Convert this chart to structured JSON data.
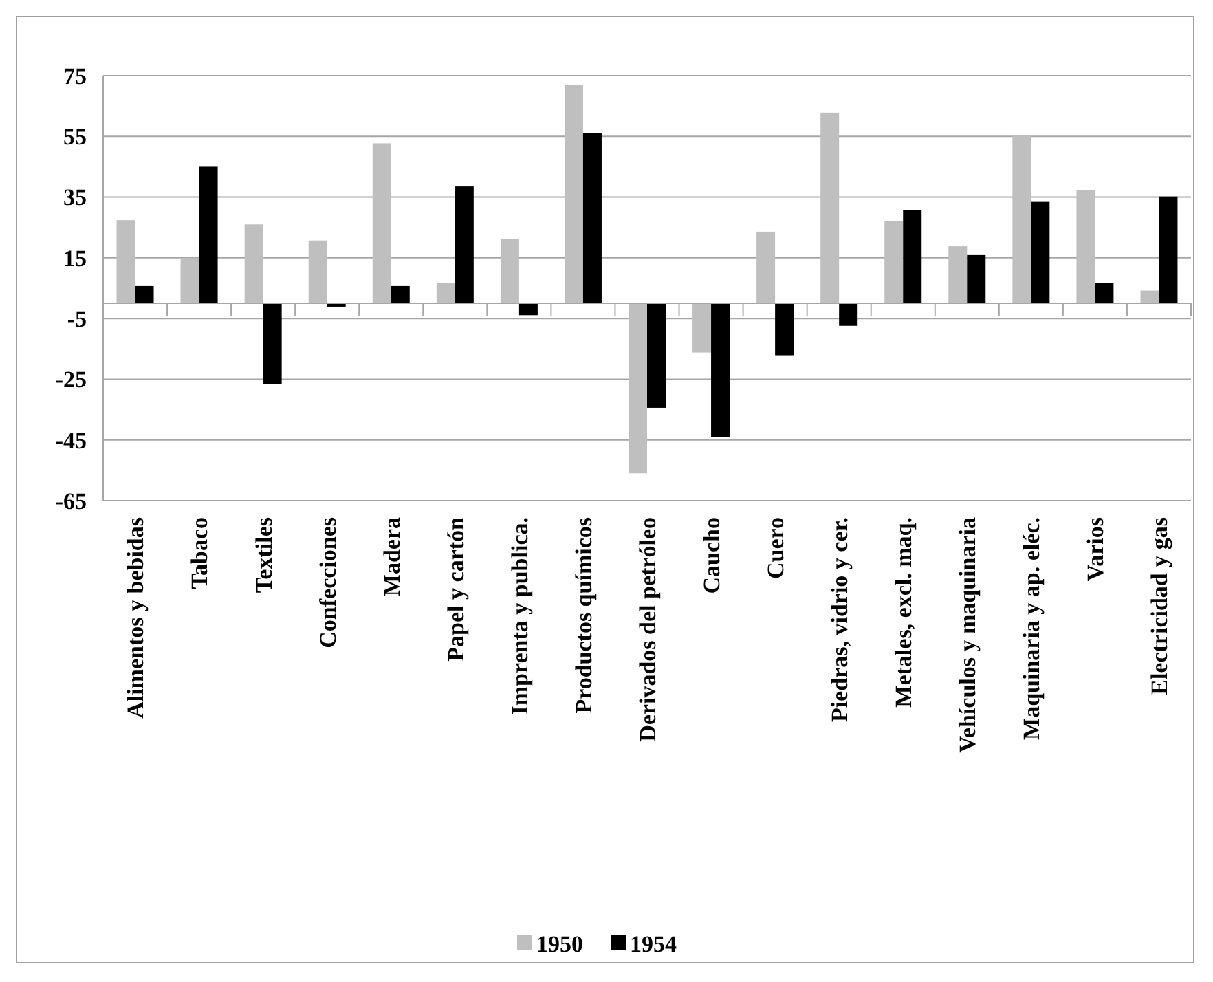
{
  "chart_data": {
    "type": "bar",
    "categories": [
      "Alimentos y bebidas",
      "Tabaco",
      "Textiles",
      "Confecciones",
      "Madera",
      "Papel y cartón",
      "Imprenta y publica.",
      "Productos químicos",
      "Derivados del petróleo",
      "Caucho",
      "Cuero",
      "Piedras, vidrio y cer.",
      "Metales, excl. maq.",
      "Vehículos y maquinaria",
      "Maquinaria y ap. eléc.",
      "Varios",
      "Electricidad y gas"
    ],
    "series": [
      {
        "name": "1950",
        "color": "#bfbfbf",
        "values": [
          27.4,
          14.8,
          26,
          20.7,
          52.7,
          6.8,
          21.2,
          72,
          -56,
          -16.2,
          23.6,
          62.8,
          27.1,
          18.8,
          55.2,
          37.2,
          4.2
        ]
      },
      {
        "name": "1954",
        "color": "#000000",
        "values": [
          5.7,
          45,
          -26.7,
          -1.1,
          5.7,
          38.5,
          -3.9,
          56,
          -34.4,
          -44.1,
          -17.1,
          -7.4,
          30.8,
          15.9,
          33.4,
          6.8,
          35.2
        ]
      }
    ],
    "ylim": [
      -65,
      75
    ],
    "yticks": [
      -65,
      -45,
      -25,
      -5,
      15,
      35,
      55,
      75
    ],
    "grid": "y",
    "legend": "bottom"
  }
}
